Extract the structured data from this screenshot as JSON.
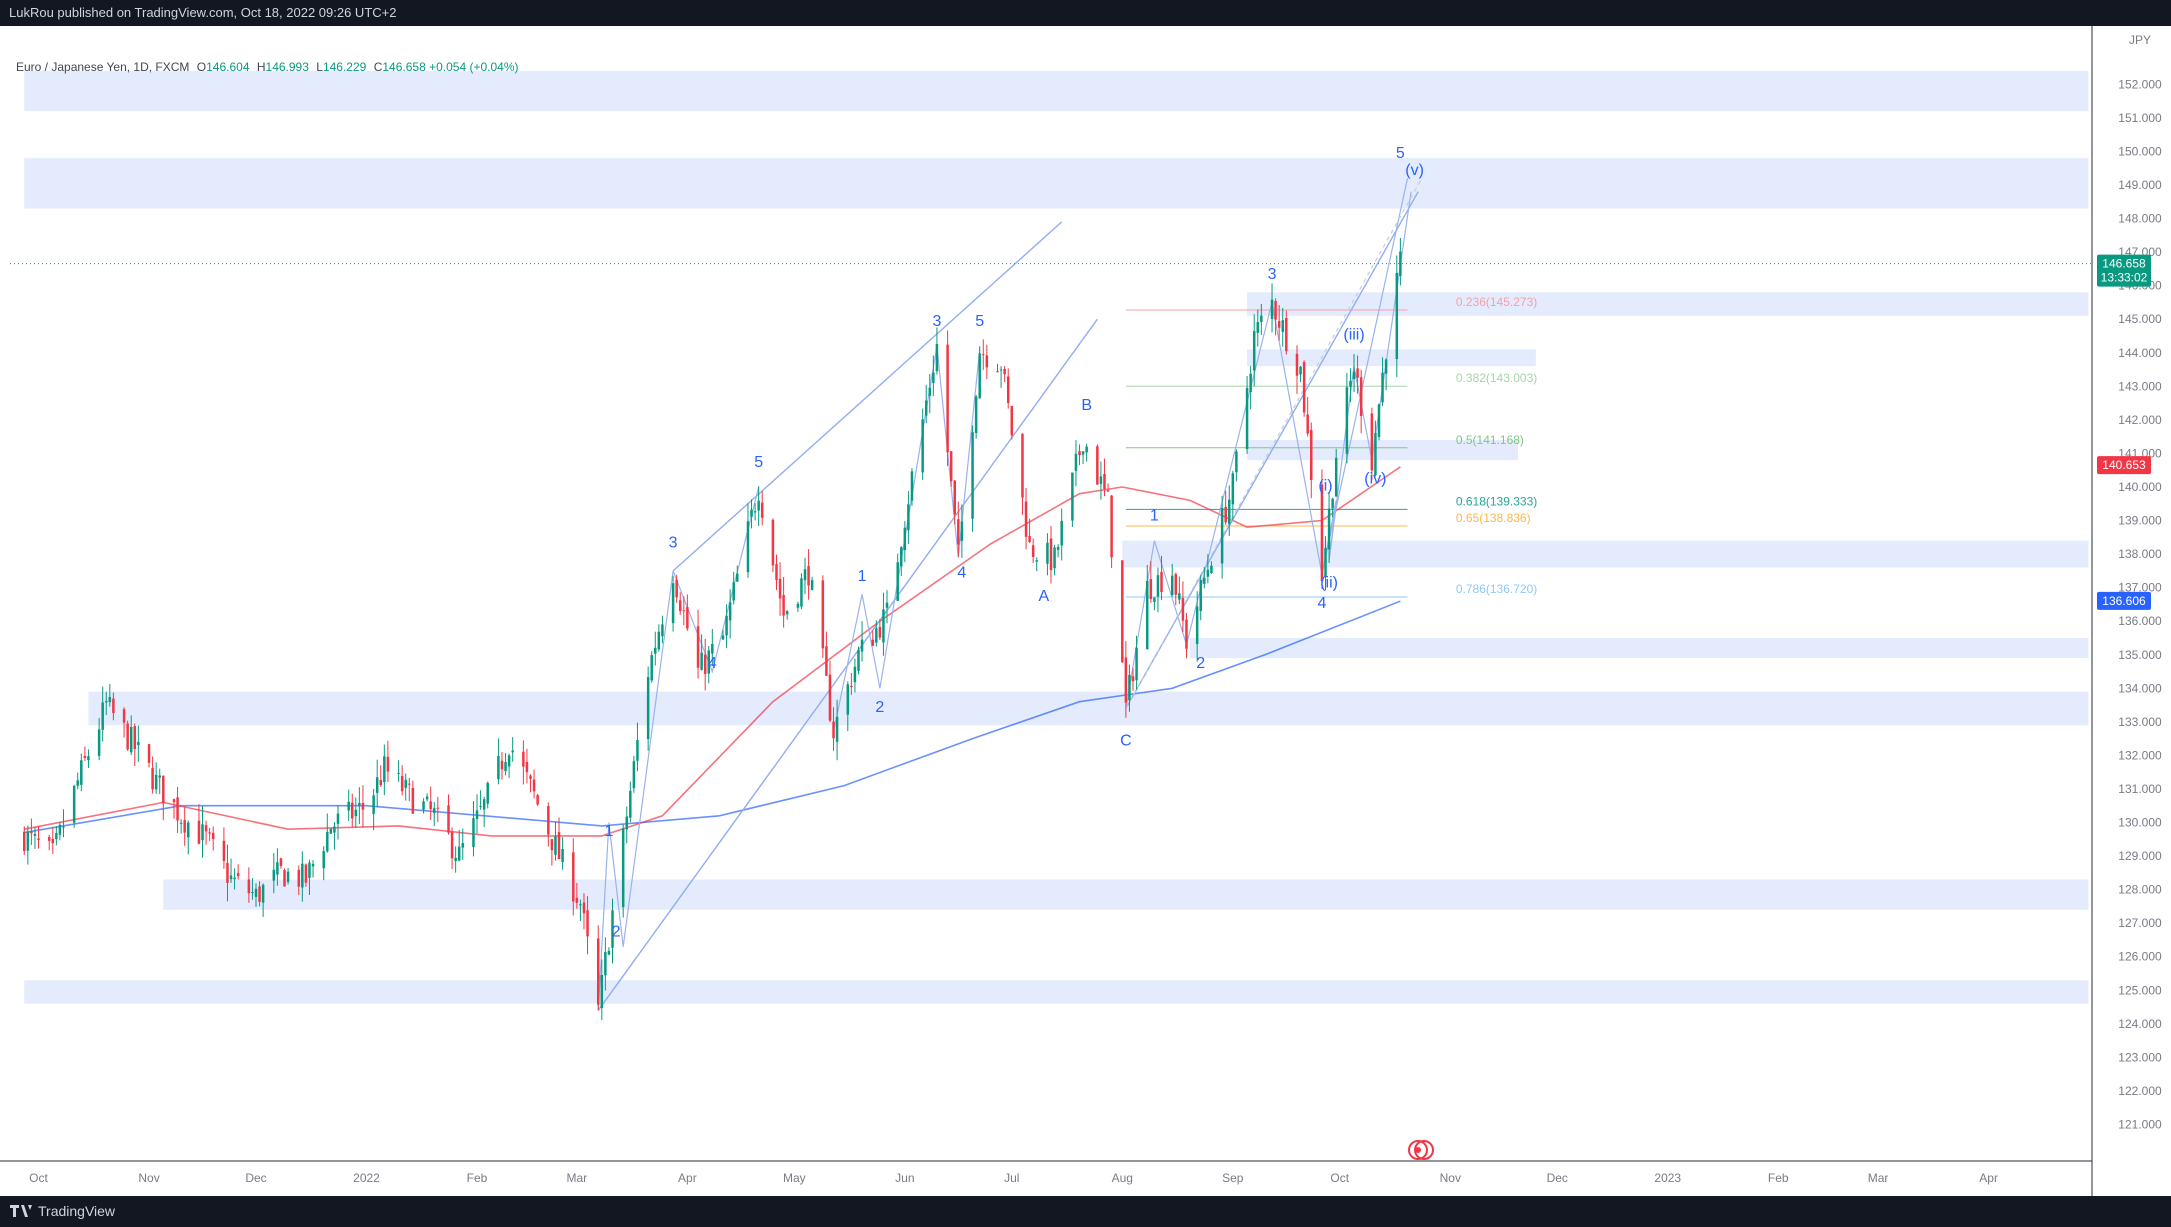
{
  "header": {
    "published": "LukRou published on TradingView.com, Oct 18, 2022 09:26 UTC+2"
  },
  "legend": {
    "symbol": "Euro / Japanese Yen, 1D, FXCM",
    "o_label": "O",
    "o": "146.604",
    "h_label": "H",
    "h": "146.993",
    "l_label": "L",
    "l": "146.229",
    "c_label": "C",
    "c": "146.658",
    "change": "+0.054 (+0.04%)"
  },
  "footer": {
    "brand": "TradingView"
  },
  "colors": {
    "up": "#089981",
    "down": "#f23645",
    "ma_fast": "#f23645",
    "ma_slow": "#2962ff",
    "zone": "#e3ebfd",
    "wave_label": "#2962ff",
    "fib_236": "#f7a1a6",
    "fib_382": "#a5d6a7",
    "fib_500": "#81c784",
    "fib_618": "#26a69a",
    "fib_650": "#ffb74d",
    "fib_786": "#90caf9"
  },
  "chart_data": {
    "type": "candlestick",
    "currency_label": "JPY",
    "ylim": [
      120.3,
      153.5
    ],
    "y_ticks": [
      "121.000",
      "122.000",
      "123.000",
      "124.000",
      "125.000",
      "126.000",
      "127.000",
      "128.000",
      "129.000",
      "130.000",
      "131.000",
      "132.000",
      "133.000",
      "134.000",
      "135.000",
      "136.000",
      "137.000",
      "138.000",
      "139.000",
      "140.000",
      "141.000",
      "142.000",
      "143.000",
      "144.000",
      "145.000",
      "146.000",
      "147.000",
      "148.000",
      "149.000",
      "150.000",
      "151.000",
      "152.000"
    ],
    "x_ticks": [
      "Oct",
      "Nov",
      "Dec",
      "2022",
      "Feb",
      "Mar",
      "Apr",
      "May",
      "Jun",
      "Jul",
      "Aug",
      "Sep",
      "Oct",
      "Nov",
      "Dec",
      "2023",
      "Feb",
      "Mar",
      "Apr"
    ],
    "last_price": {
      "value": "146.658",
      "countdown": "13:33:02"
    },
    "ma_fast_label": "140.653",
    "ma_slow_label": "136.606",
    "ohlc_path": [
      [
        "2021-09-27",
        129.6
      ],
      [
        "2021-10-05",
        129.0
      ],
      [
        "2021-10-12",
        131.2
      ],
      [
        "2021-10-20",
        133.5
      ],
      [
        "2021-10-27",
        132.4
      ],
      [
        "2021-11-03",
        131.2
      ],
      [
        "2021-11-10",
        130.2
      ],
      [
        "2021-11-17",
        129.5
      ],
      [
        "2021-11-24",
        128.3
      ],
      [
        "2021-12-01",
        127.8
      ],
      [
        "2021-12-08",
        128.5
      ],
      [
        "2021-12-15",
        128.3
      ],
      [
        "2021-12-22",
        129.9
      ],
      [
        "2022-01-01",
        130.5
      ],
      [
        "2022-01-06",
        131.6
      ],
      [
        "2022-01-13",
        130.8
      ],
      [
        "2022-01-20",
        130.2
      ],
      [
        "2022-01-27",
        129.0
      ],
      [
        "2022-02-03",
        130.5
      ],
      [
        "2022-02-10",
        132.4
      ],
      [
        "2022-02-17",
        130.8
      ],
      [
        "2022-02-24",
        129.0
      ],
      [
        "2022-03-02",
        127.6
      ],
      [
        "2022-03-07",
        124.4
      ],
      [
        "2022-03-14",
        129.5
      ],
      [
        "2022-03-21",
        134.5
      ],
      [
        "2022-03-28",
        137.5
      ],
      [
        "2022-04-04",
        134.5
      ],
      [
        "2022-04-11",
        135.5
      ],
      [
        "2022-04-21",
        140.0
      ],
      [
        "2022-04-28",
        136.2
      ],
      [
        "2022-05-05",
        137.5
      ],
      [
        "2022-05-12",
        132.7
      ],
      [
        "2022-05-19",
        135.0
      ],
      [
        "2022-05-27",
        136.2
      ],
      [
        "2022-06-03",
        140.3
      ],
      [
        "2022-06-10",
        144.2
      ],
      [
        "2022-06-16",
        137.9
      ],
      [
        "2022-06-22",
        144.1
      ],
      [
        "2022-06-28",
        143.7
      ],
      [
        "2022-07-06",
        138.2
      ],
      [
        "2022-07-13",
        137.8
      ],
      [
        "2022-07-21",
        141.5
      ],
      [
        "2022-07-28",
        139.5
      ],
      [
        "2022-08-02",
        133.4
      ],
      [
        "2022-08-08",
        137.0
      ],
      [
        "2022-08-15",
        137.5
      ],
      [
        "2022-08-19",
        135.4
      ],
      [
        "2022-08-26",
        138.0
      ],
      [
        "2022-09-01",
        140.0
      ],
      [
        "2022-09-07",
        144.5
      ],
      [
        "2022-09-12",
        145.5
      ],
      [
        "2022-09-20",
        143.5
      ],
      [
        "2022-09-26",
        137.4
      ],
      [
        "2022-09-30",
        141.0
      ],
      [
        "2022-10-05",
        143.6
      ],
      [
        "2022-10-10",
        140.8
      ],
      [
        "2022-10-14",
        144.2
      ],
      [
        "2022-10-18",
        146.7
      ]
    ],
    "ma_fast": [
      [
        "2021-09-27",
        129.8
      ],
      [
        "2021-11-05",
        130.6
      ],
      [
        "2021-12-10",
        129.8
      ],
      [
        "2022-01-10",
        129.9
      ],
      [
        "2022-02-05",
        129.6
      ],
      [
        "2022-03-08",
        129.6
      ],
      [
        "2022-03-25",
        130.2
      ],
      [
        "2022-04-25",
        133.6
      ],
      [
        "2022-05-25",
        136.0
      ],
      [
        "2022-06-25",
        138.3
      ],
      [
        "2022-07-20",
        139.8
      ],
      [
        "2022-08-01",
        140.0
      ],
      [
        "2022-08-20",
        139.6
      ],
      [
        "2022-09-05",
        138.8
      ],
      [
        "2022-09-26",
        139.0
      ],
      [
        "2022-10-18",
        140.6
      ]
    ],
    "ma_slow": [
      [
        "2021-09-27",
        129.7
      ],
      [
        "2021-11-10",
        130.5
      ],
      [
        "2022-01-01",
        130.5
      ],
      [
        "2022-03-08",
        129.9
      ],
      [
        "2022-04-10",
        130.2
      ],
      [
        "2022-05-15",
        131.1
      ],
      [
        "2022-06-20",
        132.5
      ],
      [
        "2022-07-20",
        133.6
      ],
      [
        "2022-08-15",
        134.0
      ],
      [
        "2022-09-10",
        135.0
      ],
      [
        "2022-10-18",
        136.6
      ]
    ],
    "zones": [
      {
        "x1": "2021-09-27",
        "x2": "2023-04-29",
        "y1": 151.2,
        "y2": 152.4
      },
      {
        "x1": "2021-09-27",
        "x2": "2023-04-29",
        "y1": 148.3,
        "y2": 149.8
      },
      {
        "x1": "2022-09-05",
        "x2": "2023-04-29",
        "y1": 145.1,
        "y2": 145.8
      },
      {
        "x1": "2022-09-05",
        "x2": "2022-11-25",
        "y1": 143.6,
        "y2": 144.1
      },
      {
        "x1": "2022-09-05",
        "x2": "2022-11-20",
        "y1": 140.8,
        "y2": 141.4
      },
      {
        "x1": "2022-08-01",
        "x2": "2023-04-29",
        "y1": 137.6,
        "y2": 138.4
      },
      {
        "x1": "2022-08-20",
        "x2": "2023-04-29",
        "y1": 134.9,
        "y2": 135.5
      },
      {
        "x1": "2021-10-15",
        "x2": "2023-04-29",
        "y1": 132.9,
        "y2": 133.9
      },
      {
        "x1": "2021-11-05",
        "x2": "2023-04-29",
        "y1": 127.4,
        "y2": 128.3
      },
      {
        "x1": "2021-09-27",
        "x2": "2023-04-29",
        "y1": 124.6,
        "y2": 125.3
      }
    ],
    "fib_levels": [
      {
        "label": "0.236(145.273)",
        "value": 145.273,
        "color": "#f7a1a6"
      },
      {
        "label": "0.382(143.003)",
        "value": 143.003,
        "color": "#a5d6a7"
      },
      {
        "label": "0.5(141.168)",
        "value": 141.168,
        "color": "#81c784"
      },
      {
        "label": "0.618(139.333)",
        "value": 139.333,
        "color": "#26a69a"
      },
      {
        "label": "0.65(138.836)",
        "value": 138.836,
        "color": "#ffb74d"
      },
      {
        "label": "0.786(136.720)",
        "value": 136.72,
        "color": "#90caf9"
      }
    ],
    "fib_range": [
      "2022-08-02",
      "2022-10-20"
    ],
    "trend_lines": [
      [
        [
          "2022-03-07",
          124.4
        ],
        [
          "2022-07-25",
          145.0
        ]
      ],
      [
        [
          "2022-03-28",
          137.5
        ],
        [
          "2022-07-15",
          147.9
        ]
      ],
      [
        [
          "2022-08-02",
          133.4
        ],
        [
          "2022-10-23",
          148.8
        ]
      ]
    ],
    "wave_path": [
      [
        [
          "2022-03-07",
          124.4
        ],
        [
          "2022-03-10",
          130.0
        ],
        [
          "2022-03-14",
          126.3
        ],
        [
          "2022-03-28",
          137.5
        ],
        [
          "2022-04-08",
          134.5
        ],
        [
          "2022-04-21",
          140.0
        ]
      ],
      [
        [
          "2022-05-12",
          132.7
        ],
        [
          "2022-05-20",
          136.8
        ],
        [
          "2022-05-25",
          134.0
        ],
        [
          "2022-06-10",
          144.2
        ],
        [
          "2022-06-16",
          137.9
        ],
        [
          "2022-06-22",
          144.1
        ]
      ],
      [
        [
          "2022-08-02",
          133.4
        ],
        [
          "2022-08-10",
          138.4
        ],
        [
          "2022-08-19",
          135.3
        ],
        [
          "2022-09-12",
          145.5
        ],
        [
          "2022-09-26",
          137.4
        ],
        [
          "2022-10-20",
          149.2
        ]
      ],
      [
        [
          "2022-09-26",
          137.4
        ],
        [
          "2022-09-30",
          139.6
        ],
        [
          "2022-09-28",
          137.8
        ],
        [
          "2022-10-05",
          143.6
        ],
        [
          "2022-10-10",
          140.8
        ],
        [
          "2022-10-21",
          148.8
        ]
      ]
    ],
    "wave_labels": [
      {
        "t": "1",
        "d": "2022-03-10",
        "y": 129.6
      },
      {
        "t": "2",
        "d": "2022-03-12",
        "y": 126.6
      },
      {
        "t": "3",
        "d": "2022-03-28",
        "y": 138.2
      },
      {
        "t": "4",
        "d": "2022-04-08",
        "y": 134.6
      },
      {
        "t": "5",
        "d": "2022-04-21",
        "y": 140.6
      },
      {
        "t": "1",
        "d": "2022-05-20",
        "y": 137.2
      },
      {
        "t": "2",
        "d": "2022-05-25",
        "y": 133.3
      },
      {
        "t": "3",
        "d": "2022-06-10",
        "y": 144.8
      },
      {
        "t": "4",
        "d": "2022-06-17",
        "y": 137.3
      },
      {
        "t": "5",
        "d": "2022-06-22",
        "y": 144.8
      },
      {
        "t": "A",
        "d": "2022-07-10",
        "y": 136.6
      },
      {
        "t": "B",
        "d": "2022-07-22",
        "y": 142.3
      },
      {
        "t": "C",
        "d": "2022-08-02",
        "y": 132.3
      },
      {
        "t": "1",
        "d": "2022-08-10",
        "y": 139.0
      },
      {
        "t": "2",
        "d": "2022-08-23",
        "y": 134.6
      },
      {
        "t": "3",
        "d": "2022-09-12",
        "y": 146.2
      },
      {
        "t": "4",
        "d": "2022-09-26",
        "y": 136.4
      },
      {
        "t": "(i)",
        "d": "2022-09-27",
        "y": 139.9
      },
      {
        "t": "(ii)",
        "d": "2022-09-28",
        "y": 137.0
      },
      {
        "t": "(iii)",
        "d": "2022-10-05",
        "y": 144.4
      },
      {
        "t": "(iv)",
        "d": "2022-10-11",
        "y": 140.1
      },
      {
        "t": "5",
        "d": "2022-10-18",
        "y": 149.8
      },
      {
        "t": "(v)",
        "d": "2022-10-22",
        "y": 149.3
      }
    ]
  }
}
